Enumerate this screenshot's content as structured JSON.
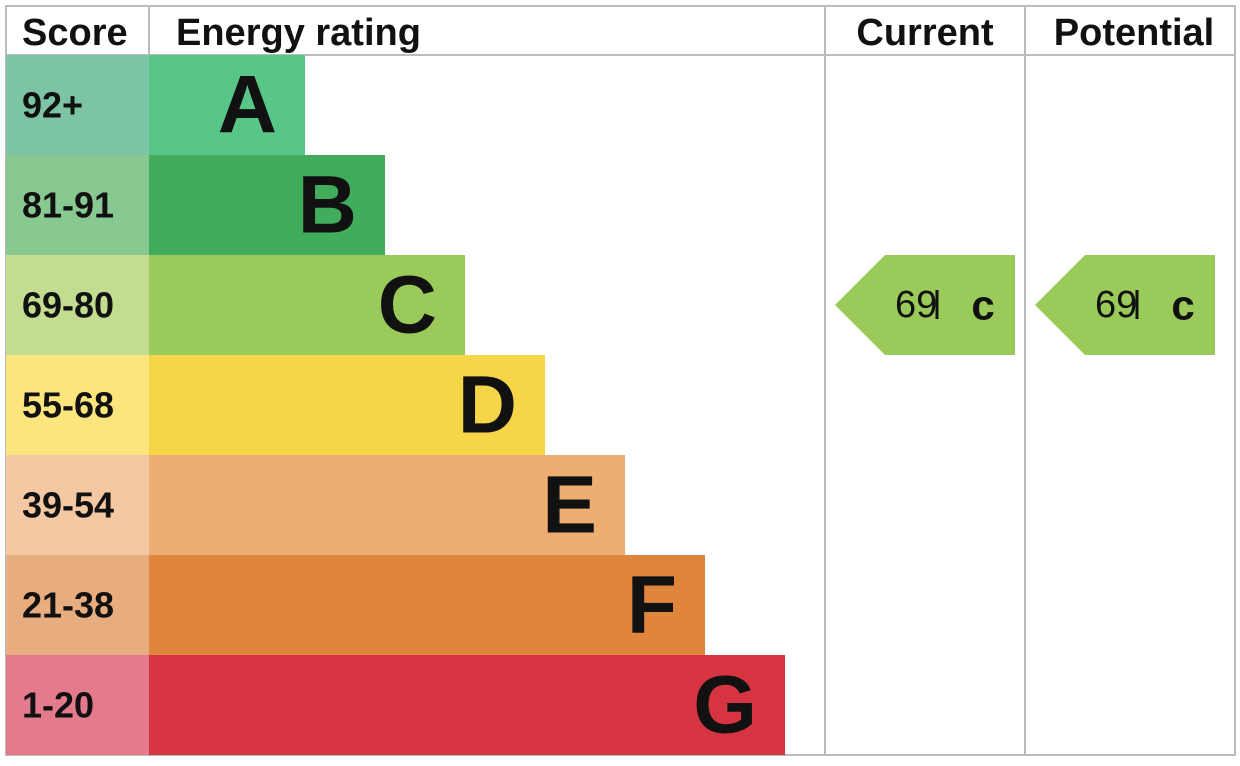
{
  "header": {
    "score": "Score",
    "rating": "Energy rating",
    "current": "Current",
    "potential": "Potential"
  },
  "bands": [
    {
      "score": "92+",
      "letter": "A",
      "score_color": "#7dc4a5",
      "bar_color": "#58c687"
    },
    {
      "score": "81-91",
      "letter": "B",
      "score_color": "#88c891",
      "bar_color": "#41ad5c"
    },
    {
      "score": "69-80",
      "letter": "C",
      "score_color": "#c2dd90",
      "bar_color": "#9acb5a"
    },
    {
      "score": "55-68",
      "letter": "D",
      "score_color": "#fce57c",
      "bar_color": "#f7d549"
    },
    {
      "score": "39-54",
      "letter": "E",
      "score_color": "#f4c8a3",
      "bar_color": "#eeae72"
    },
    {
      "score": "21-38",
      "letter": "F",
      "score_color": "#e8ad7e",
      "bar_color": "#e0853c"
    },
    {
      "score": "1-20",
      "letter": "G",
      "score_color": "#e47b8c",
      "bar_color": "#d63441"
    }
  ],
  "current": {
    "value": 69,
    "letter": "c",
    "band": 2
  },
  "potential": {
    "value": 69,
    "letter": "c",
    "band": 2
  }
}
